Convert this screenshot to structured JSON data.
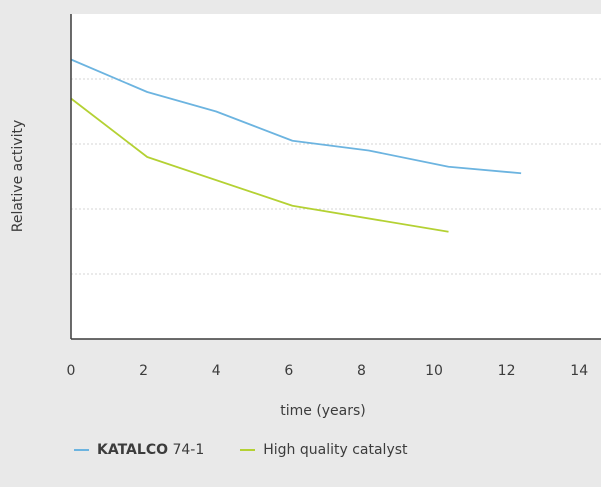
{
  "colors": {
    "background": "#e9e9e9",
    "plot_background": "#ffffff",
    "axis": "#3c3c3c",
    "grid": "#d6d6d6",
    "katalco": "#6cb4e0",
    "high_quality": "#b4d133"
  },
  "legend": {
    "katalco_brand": "KATALCO",
    "katalco_model": "74-1",
    "high_quality": "High quality catalyst"
  },
  "chart_data": {
    "type": "line",
    "xlabel": "time (years)",
    "ylabel": "Relative activity",
    "xlim": [
      0,
      14
    ],
    "ylim": [
      0,
      1
    ],
    "xticks": [
      0,
      2,
      4,
      6,
      8,
      10,
      12,
      14
    ],
    "grid": "horizontal dotted",
    "legend_position": "bottom",
    "series": [
      {
        "name": "KATALCO 74-1",
        "color": "#6cb4e0",
        "x": [
          0,
          2.1,
          4,
          6.1,
          8.2,
          10.4,
          12.4
        ],
        "y": [
          0.86,
          0.76,
          0.7,
          0.61,
          0.58,
          0.53,
          0.51
        ]
      },
      {
        "name": "High quality catalyst",
        "color": "#b4d133",
        "x": [
          0,
          2.1,
          6.1,
          10.4
        ],
        "y": [
          0.74,
          0.56,
          0.41,
          0.33
        ]
      }
    ]
  }
}
